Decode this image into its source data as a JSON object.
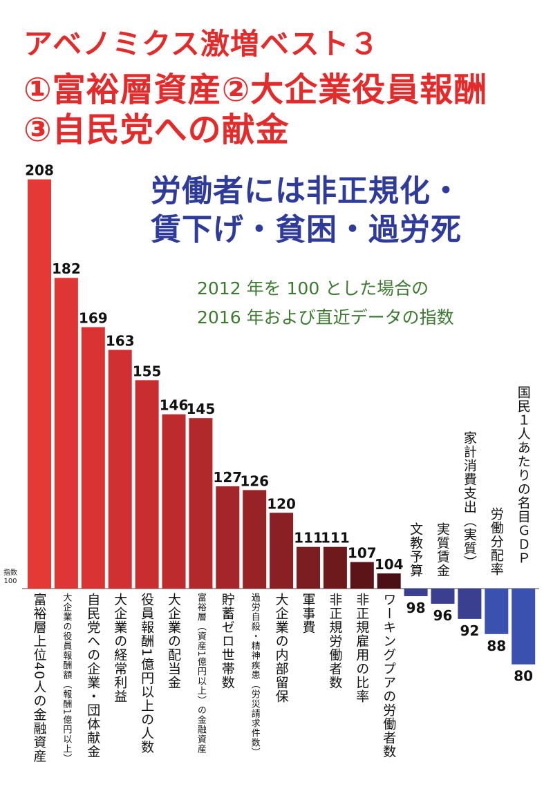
{
  "header": {
    "line1": "アベノミクス激増ベスト３",
    "line2": "①富裕層資産②大企業役員報酬",
    "line3": "③自民党への献金"
  },
  "subheading": {
    "line1": "労働者には非正規化・",
    "line2": "賃下げ・貧困・過労死"
  },
  "note": {
    "line1": "2012 年を 100 とした場合の",
    "line2": "2016 年および直近データの指数"
  },
  "axis_label": {
    "line1": "指数",
    "line2": "100"
  },
  "chart_data": {
    "type": "bar",
    "title": "アベノミクス激増ベスト３",
    "ylabel": "指数",
    "baseline": 100,
    "ylim": [
      75,
      212
    ],
    "categories": [
      "富裕層上位40人の金融資産",
      "大企業の役員報酬額（報酬1億円以上）",
      "自民党への企業・団体献金",
      "大企業の経常利益",
      "役員報酬1億円以上の人数",
      "大企業の配当金",
      "富裕層（資産1億円以上）の金融資産",
      "貯蓄ゼロ世帯数",
      "過労自殺・精神疾患（労災請求件数）",
      "大企業の内部留保",
      "軍事費",
      "非正規労働者数",
      "非正規雇用の比率",
      "ワーキングプアの労働者数",
      "文教予算",
      "実質賃金",
      "家計消費支出（実質）",
      "労働分配率",
      "国民１人あたりの名目ＧＤＰ"
    ],
    "values": [
      208,
      182,
      169,
      163,
      155,
      146,
      145,
      127,
      126,
      120,
      111,
      111,
      107,
      104,
      98,
      96,
      92,
      88,
      80
    ],
    "colors": [
      "#e53935",
      "#df3535",
      "#d93334",
      "#d13032",
      "#c82e30",
      "#bd2b2e",
      "#b2292c",
      "#a5262a",
      "#982327",
      "#8a2024",
      "#7c1d21",
      "#6e1a1d",
      "#5c1419",
      "#4a1015",
      "#3a3f8f",
      "#3a3f8f",
      "#3a3f8f",
      "#3a51b0",
      "#3a51b0"
    ],
    "grid": false,
    "legend": "none"
  }
}
